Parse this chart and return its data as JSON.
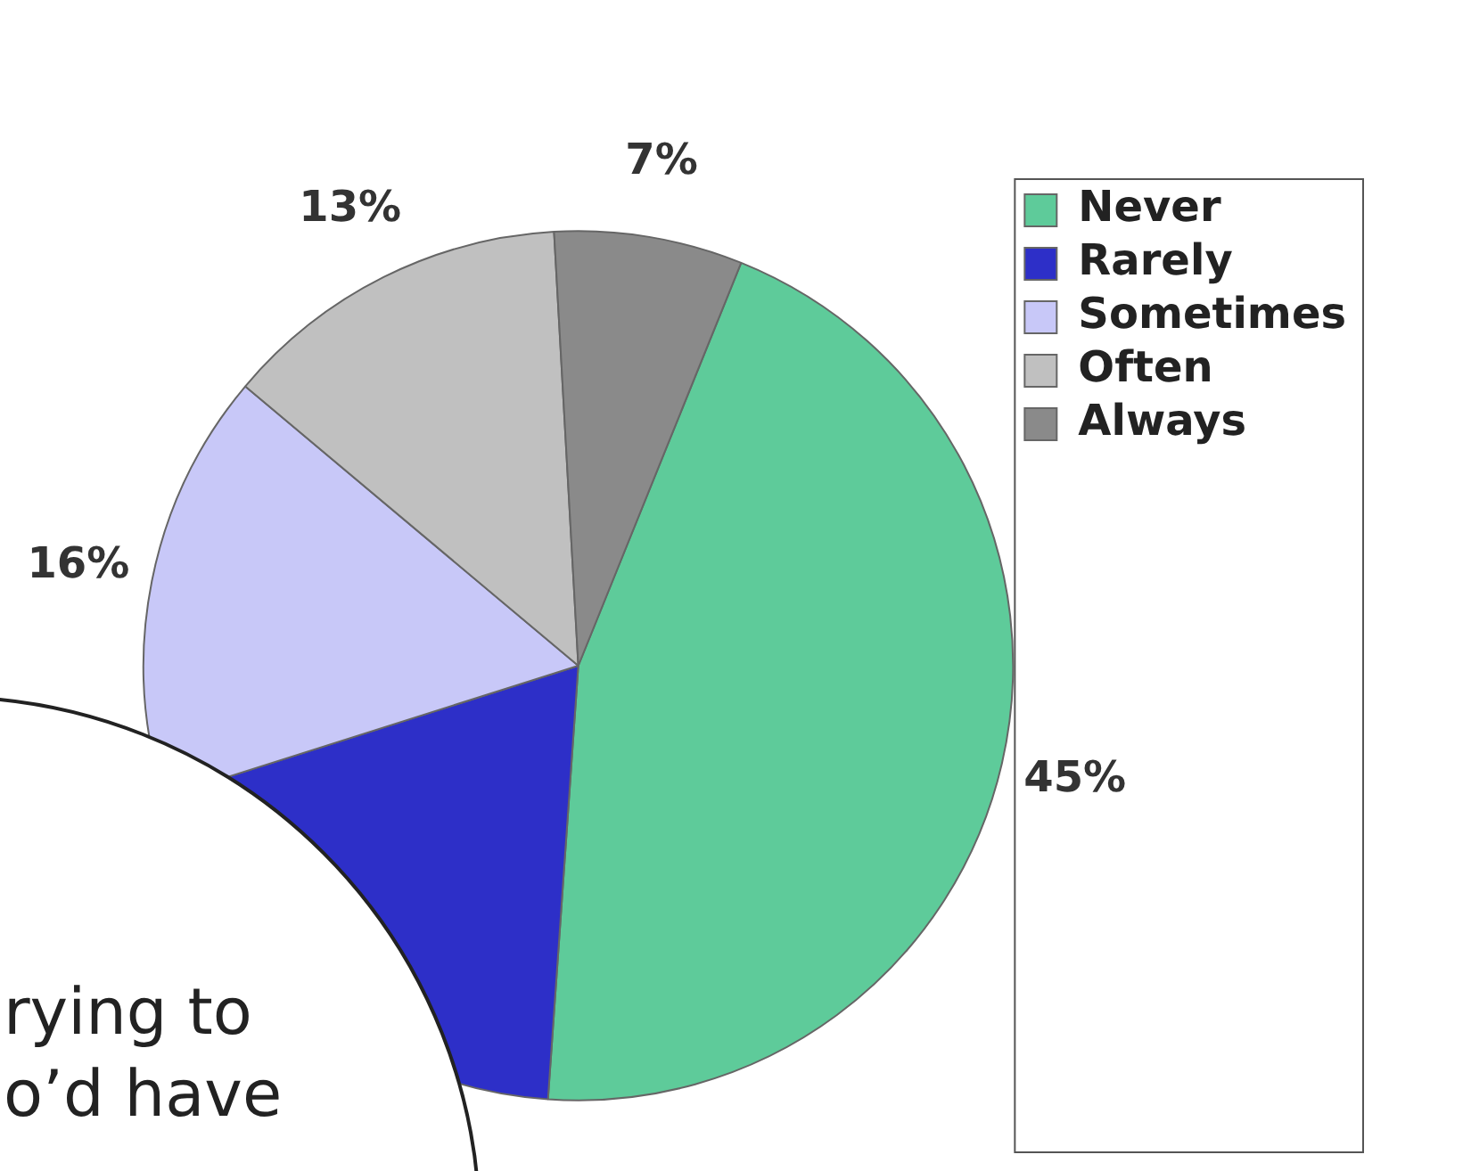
{
  "chart_data": {
    "type": "pie",
    "categories": [
      "Never",
      "Rarely",
      "Sometimes",
      "Often",
      "Always"
    ],
    "values": [
      45,
      19,
      16,
      13,
      7
    ],
    "value_labels": [
      "45%",
      null,
      "16%",
      "13%",
      "7%"
    ],
    "colors": [
      "#5ecb9a",
      "#2d2fc8",
      "#c8c8f8",
      "#c0c0c0",
      "#8a8a8a"
    ],
    "legend": "top right",
    "annotations": [
      "rying to",
      "o’d have"
    ]
  }
}
